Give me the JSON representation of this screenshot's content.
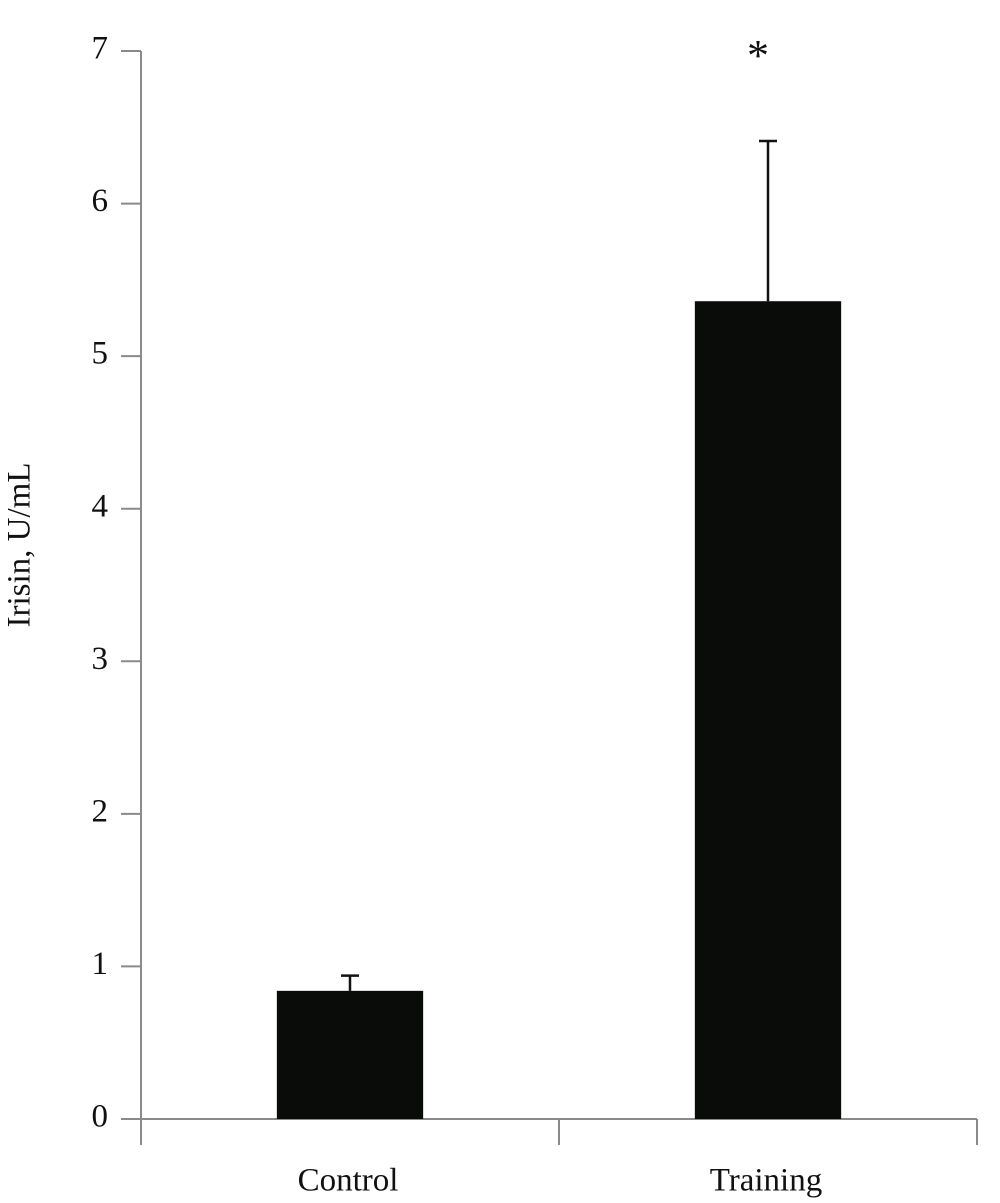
{
  "chart_data": {
    "type": "bar",
    "y_label": "Irisin, U/mL",
    "categories": [
      "Control",
      "Training"
    ],
    "values": [
      0.84,
      5.36
    ],
    "errors": [
      0.1,
      1.05
    ],
    "color": "#0a0c0a",
    "ylim": [
      0,
      7
    ],
    "yticks": [
      0,
      1,
      2,
      3,
      4,
      5,
      6,
      7
    ],
    "annotation": "*"
  }
}
